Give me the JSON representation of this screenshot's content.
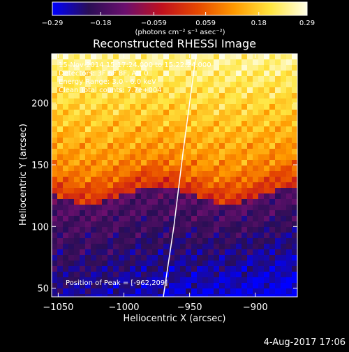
{
  "chart_data": {
    "type": "heatmap",
    "title": "Reconstructed RHESSI Image",
    "xlabel": "Heliocentric X (arcsec)",
    "ylabel": "Heliocentric Y (arcsec)",
    "xlim": [
      -1055,
      -868
    ],
    "ylim": [
      43,
      240
    ],
    "x_ticks": [
      -1050,
      -1000,
      -950,
      -900
    ],
    "x_tick_labels": [
      "−1050",
      "−1000",
      "−950",
      "−900"
    ],
    "y_ticks": [
      50,
      100,
      150,
      200
    ],
    "y_tick_labels": [
      "50",
      "100",
      "150",
      "200"
    ],
    "colorbar": {
      "ticks": [
        -0.29,
        -0.18,
        -0.059,
        0.059,
        0.18,
        0.29
      ],
      "tick_labels": [
        "−0.29",
        "−0.18",
        "−0.059",
        "0.059",
        "0.18",
        "0.29"
      ],
      "range": [
        -0.29,
        0.29
      ],
      "unit_label": "(photons cm⁻² s⁻¹ asec⁻²)",
      "colormap": [
        "#0000ff",
        "#2a0e55",
        "#6b0f6e",
        "#c0101e",
        "#e64800",
        "#ff9a00",
        "#ffe640",
        "#ffffe8"
      ]
    },
    "annotations": [
      "15-Nov-2014 15:17:24.000 to 15:22:24.000",
      "Detectors: 3F 6F 8F, Att 0",
      "Energy Range: 3.0 - 6.0 keV",
      "Clean     Total counts: 7.7e+004"
    ],
    "peak_label": "Position of Peak = [-962,209]",
    "peak_position": [
      -962,
      209
    ],
    "limb_curve": {
      "x": [
        -970,
        -962,
        -955,
        -950,
        -945
      ],
      "y": [
        43,
        100,
        160,
        200,
        240
      ]
    },
    "grid": false
  },
  "footer": {
    "date": "4-Aug-2017 17:06"
  }
}
